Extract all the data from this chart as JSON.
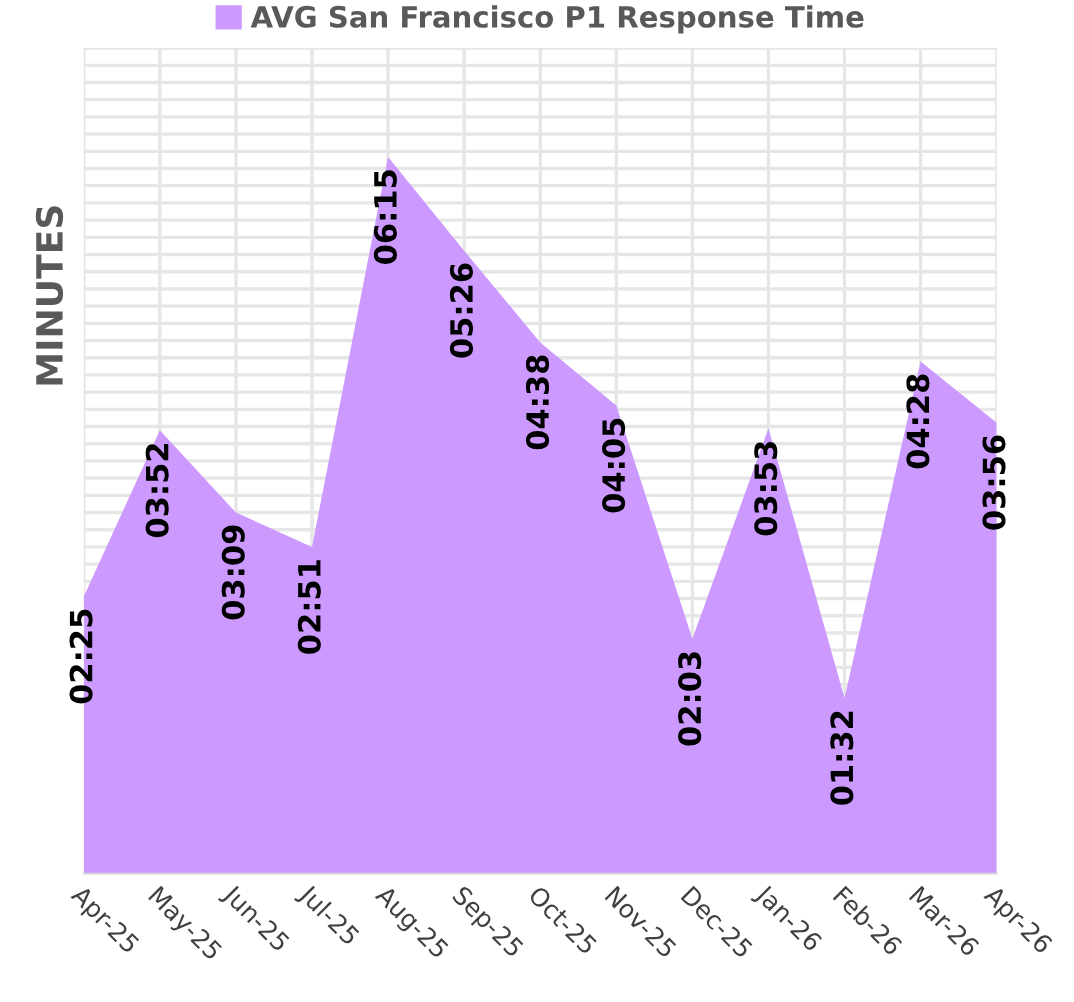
{
  "chart_data": {
    "type": "area",
    "ylabel": "MINUTES",
    "categories": [
      "Apr-25",
      "May-25",
      "Jun-25",
      "Jul-25",
      "Aug-25",
      "Sep-25",
      "Oct-25",
      "Nov-25",
      "Dec-25",
      "Jan-26",
      "Feb-26",
      "Mar-26",
      "Apr-26"
    ],
    "series": [
      {
        "name": "AVG San Francisco P1 Response Time",
        "color": "#cc99ff",
        "values": [
          2.417,
          3.867,
          3.15,
          2.85,
          6.25,
          5.433,
          4.633,
          4.083,
          2.05,
          3.883,
          1.533,
          4.467,
          3.933
        ],
        "value_labels": [
          "02:25",
          "03:52",
          "03:09",
          "02:51",
          "06:15",
          "05:26",
          "04:38",
          "04:05",
          "02:03",
          "03:53",
          "01:32",
          "04:28",
          "03:56"
        ]
      }
    ],
    "ylim": [
      0,
      7.2
    ],
    "tick_labels": "x",
    "grid": true,
    "legend": "top"
  }
}
